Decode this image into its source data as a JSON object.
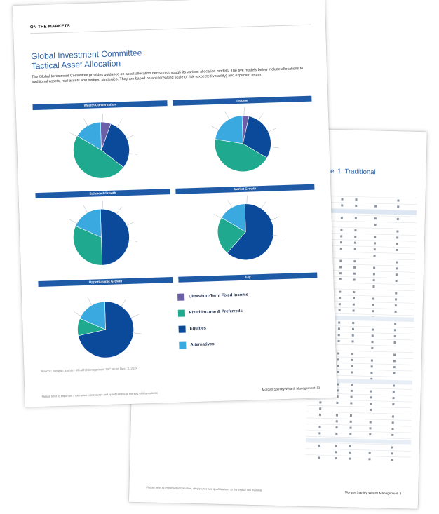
{
  "front_page": {
    "kicker": "ON THE MARKETS",
    "title_line1": "Global Investment Committee",
    "title_line2": "Tactical Asset Allocation",
    "intro": "The Global Investment Committee provides guidance on asset allocation decisions through its various allocation models. The five models below include allocations to traditional assets, real assets and hedged strategies. They are based on an increasing scale of risk (expected volatility) and expected return.",
    "sections": [
      {
        "label": "Wealth Conservation"
      },
      {
        "label": "Income"
      },
      {
        "label": "Balanced Growth"
      },
      {
        "label": "Market Growth"
      },
      {
        "label": "Opportunistic Growth"
      },
      {
        "label": "Key"
      }
    ],
    "legend": [
      {
        "label": "Ultrashort-Term Fixed Income",
        "color": "#6b5fa8"
      },
      {
        "label": "Fixed Income & Preferreds",
        "color": "#1fa98f"
      },
      {
        "label": "Equities",
        "color": "#0b4a9a"
      },
      {
        "label": "Alternatives",
        "color": "#3aa9e0"
      }
    ],
    "source": "Source: Morgan Stanley Wealth Management GIC as of Dec. 3, 2024",
    "footer_note": "Please refer to important information, disclosures and qualifications at the end of this material.",
    "footer_brand": "Morgan Stanley Wealth Management",
    "page_number": "11"
  },
  "back_page": {
    "title_fragment": "els, Level 1: Traditional",
    "footer_note": "Please refer to important information, disclosures and qualifications at the end of this material.",
    "footer_brand": "Morgan Stanley Wealth Management",
    "page_number": "8"
  },
  "pies": [
    {
      "name": "wealth-conservation",
      "slices": [
        {
          "color": "#6b5fa8",
          "v": 6
        },
        {
          "color": "#0b4a9a",
          "v": 30
        },
        {
          "color": "#1fa98f",
          "v": 48
        },
        {
          "color": "#3aa9e0",
          "v": 16
        }
      ]
    },
    {
      "name": "income",
      "slices": [
        {
          "color": "#6b5fa8",
          "v": 4
        },
        {
          "color": "#0b4a9a",
          "v": 30
        },
        {
          "color": "#1fa98f",
          "v": 44
        },
        {
          "color": "#3aa9e0",
          "v": 22
        }
      ]
    },
    {
      "name": "balanced-growth",
      "slices": [
        {
          "color": "#0b4a9a",
          "v": 50
        },
        {
          "color": "#1fa98f",
          "v": 32
        },
        {
          "color": "#3aa9e0",
          "v": 18
        }
      ]
    },
    {
      "name": "market-growth",
      "slices": [
        {
          "color": "#0b4a9a",
          "v": 62
        },
        {
          "color": "#1fa98f",
          "v": 22
        },
        {
          "color": "#3aa9e0",
          "v": 16
        }
      ]
    },
    {
      "name": "opportunistic-growth",
      "slices": [
        {
          "color": "#0b4a9a",
          "v": 72
        },
        {
          "color": "#1fa98f",
          "v": 10
        },
        {
          "color": "#3aa9e0",
          "v": 18
        }
      ]
    }
  ]
}
